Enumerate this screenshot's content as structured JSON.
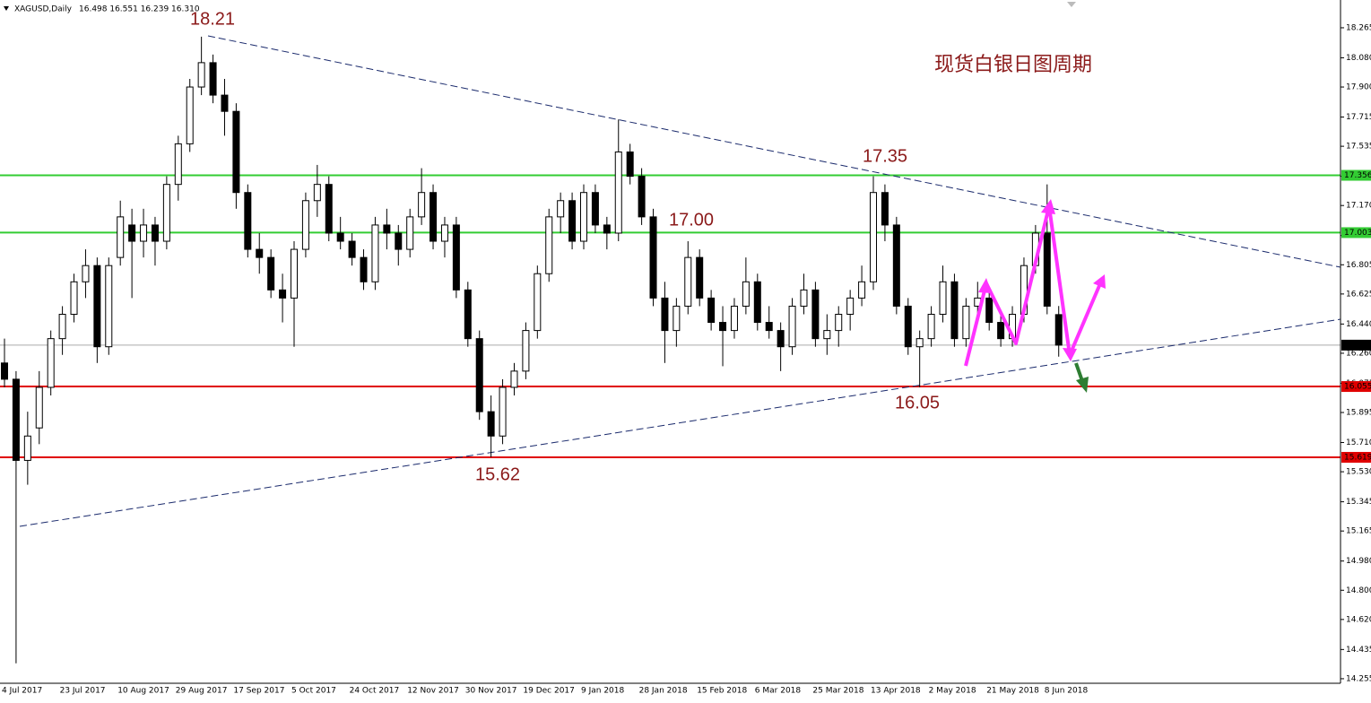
{
  "header": {
    "symbol": "XAGUSD,Daily",
    "quote": "16.498 16.551 16.239 16.310"
  },
  "chart_data": {
    "type": "candlestick",
    "title": "现货白银日图周期",
    "annotations": [
      "18.21",
      "17.35",
      "17.00",
      "16.05",
      "15.62"
    ],
    "categories": [
      "4 Jul 2017",
      null,
      null,
      null,
      null,
      "23 Jul 2017",
      null,
      null,
      null,
      null,
      "10 Aug 2017",
      null,
      null,
      null,
      null,
      "29 Aug 2017",
      null,
      null,
      null,
      null,
      "17 Sep 2017",
      null,
      null,
      null,
      null,
      "5 Oct 2017",
      null,
      null,
      null,
      null,
      "24 Oct 2017",
      null,
      null,
      null,
      null,
      "12 Nov 2017",
      null,
      null,
      null,
      null,
      "30 Nov 2017",
      null,
      null,
      null,
      null,
      "19 Dec 2017",
      null,
      null,
      null,
      null,
      "9 Jan 2018",
      null,
      null,
      null,
      null,
      "28 Jan 2018",
      null,
      null,
      null,
      null,
      "15 Feb 2018",
      null,
      null,
      null,
      null,
      "6 Mar 2018",
      null,
      null,
      null,
      null,
      "25 Mar 2018",
      null,
      null,
      null,
      null,
      "13 Apr 2018",
      null,
      null,
      null,
      null,
      "2 May 2018",
      null,
      null,
      null,
      null,
      "21 May 2018",
      null,
      null,
      null,
      null,
      "8 Jun 2018",
      null
    ],
    "open": [
      16.2,
      16.1,
      15.6,
      15.8,
      16.05,
      16.35,
      16.5,
      16.7,
      16.8,
      16.3,
      16.85,
      17.05,
      16.95,
      17.05,
      16.95,
      17.3,
      17.55,
      17.9,
      18.05,
      17.85,
      17.75,
      17.25,
      16.9,
      16.85,
      16.65,
      16.6,
      16.9,
      17.2,
      17.3,
      17,
      16.95,
      16.85,
      16.7,
      17.05,
      17,
      16.9,
      17.1,
      17.25,
      16.95,
      17.05,
      16.65,
      16.35,
      15.9,
      15.75,
      16.05,
      16.15,
      16.4,
      16.75,
      17.1,
      17.2,
      16.95,
      17.25,
      17.05,
      17,
      17.5,
      17.35,
      17.1,
      16.6,
      16.4,
      16.55,
      16.85,
      16.6,
      16.45,
      16.4,
      16.55,
      16.7,
      16.45,
      16.4,
      16.3,
      16.55,
      16.65,
      16.35,
      16.4,
      16.5,
      16.6,
      16.7,
      17.25,
      17.05,
      16.55,
      16.3,
      16.35,
      16.5,
      16.7,
      16.35,
      16.55,
      16.6,
      16.45,
      16.35,
      16.5,
      16.8,
      17,
      16.498
    ],
    "high": [
      16.35,
      16.15,
      15.9,
      16.15,
      16.4,
      16.55,
      16.75,
      16.9,
      16.85,
      16.85,
      17.2,
      17.15,
      17.15,
      17.1,
      17.35,
      17.6,
      17.95,
      18.21,
      18.1,
      17.95,
      17.8,
      17.3,
      17,
      16.9,
      16.75,
      16.95,
      17.25,
      17.42,
      17.35,
      17.1,
      17,
      16.9,
      17.1,
      17.15,
      17.05,
      17.15,
      17.4,
      17.3,
      17.1,
      17.1,
      16.7,
      16.4,
      16,
      16.1,
      16.2,
      16.45,
      16.8,
      17.15,
      17.25,
      17.25,
      17.3,
      17.3,
      17.1,
      17.7,
      17.55,
      17.4,
      17.15,
      16.7,
      16.6,
      16.95,
      16.9,
      16.65,
      16.55,
      16.6,
      16.85,
      16.75,
      16.55,
      16.45,
      16.6,
      16.75,
      16.7,
      16.5,
      16.55,
      16.65,
      16.8,
      17.35,
      17.3,
      17.1,
      16.6,
      16.4,
      16.55,
      16.8,
      16.75,
      16.6,
      16.7,
      16.65,
      16.5,
      16.55,
      16.85,
      17.05,
      17.3,
      16.551
    ],
    "low": [
      16.05,
      14.35,
      15.45,
      15.7,
      16,
      16.25,
      16.45,
      16.6,
      16.2,
      16.25,
      16.8,
      16.6,
      16.85,
      16.8,
      16.9,
      17.2,
      17.5,
      17.85,
      17.8,
      17.6,
      17.15,
      16.85,
      16.75,
      16.6,
      16.45,
      16.3,
      16.85,
      17.1,
      16.95,
      16.9,
      16.8,
      16.65,
      16.65,
      16.9,
      16.8,
      16.85,
      17.05,
      16.9,
      16.85,
      16.6,
      16.3,
      15.85,
      15.62,
      15.7,
      16,
      16.1,
      16.35,
      16.7,
      17,
      16.9,
      16.9,
      17,
      16.9,
      16.95,
      17.3,
      17.05,
      16.55,
      16.2,
      16.3,
      16.5,
      16.55,
      16.4,
      16.18,
      16.35,
      16.5,
      16.4,
      16.35,
      16.15,
      16.25,
      16.5,
      16.3,
      16.25,
      16.3,
      16.4,
      16.55,
      16.65,
      16.95,
      16.5,
      16.25,
      16.05,
      16.3,
      16.45,
      16.3,
      16.3,
      16.45,
      16.4,
      16.3,
      16.3,
      16.45,
      16.75,
      16.5,
      16.239
    ],
    "close": [
      16.1,
      15.6,
      15.75,
      16.05,
      16.35,
      16.5,
      16.7,
      16.8,
      16.3,
      16.8,
      17.1,
      16.95,
      17.05,
      16.95,
      17.3,
      17.55,
      17.9,
      18.05,
      17.85,
      17.75,
      17.25,
      16.9,
      16.85,
      16.65,
      16.6,
      16.9,
      17.2,
      17.3,
      17,
      16.95,
      16.85,
      16.7,
      17.05,
      17,
      16.9,
      17.1,
      17.25,
      16.95,
      17.05,
      16.65,
      16.35,
      15.9,
      15.75,
      16.05,
      16.15,
      16.4,
      16.75,
      17.1,
      17.2,
      16.95,
      17.25,
      17.05,
      17,
      17.5,
      17.35,
      17.1,
      16.6,
      16.4,
      16.55,
      16.85,
      16.6,
      16.45,
      16.4,
      16.55,
      16.7,
      16.45,
      16.4,
      16.3,
      16.55,
      16.65,
      16.35,
      16.4,
      16.5,
      16.6,
      16.7,
      17.25,
      17.05,
      16.55,
      16.3,
      16.35,
      16.5,
      16.7,
      16.35,
      16.55,
      16.6,
      16.45,
      16.35,
      16.5,
      16.8,
      17,
      16.55,
      16.31
    ],
    "up_color": "#ffffff",
    "down_color": "#000000",
    "levels": [
      {
        "value": 17.356,
        "label": "17.356",
        "color": "#33cc33"
      },
      {
        "value": 17.003,
        "label": "17.003",
        "color": "#33cc33"
      },
      {
        "value": 16.31,
        "label": "16.310",
        "color": "#000000"
      },
      {
        "value": 16.055,
        "label": "16.055",
        "color": "#e00000"
      },
      {
        "value": 15.619,
        "label": "15.619",
        "color": "#e00000"
      }
    ],
    "ylim": [
      14.227,
      18.436
    ],
    "yticks": [
      18.265,
      {
        "value": 18.08,
        "label": "18.080"
      },
      {
        "value": 17.9,
        "label": "17.900"
      },
      17.715,
      17.535,
      {
        "value": 17.35,
        "label": "17.350"
      },
      {
        "value": 17.17,
        "label": "17.170"
      },
      16.985,
      16.805,
      16.625,
      {
        "value": 16.44,
        "label": "16.440"
      },
      {
        "value": 16.26,
        "label": "16.260"
      },
      16.075,
      15.895,
      {
        "value": 15.71,
        "label": "15.710"
      },
      {
        "value": 15.53,
        "label": "15.530"
      },
      15.345,
      15.165,
      {
        "value": 14.98,
        "label": "14.980"
      },
      {
        "value": 14.8,
        "label": "14.800"
      },
      {
        "value": 14.62,
        "label": "14.620"
      },
      14.435,
      14.255
    ],
    "grid": false
  }
}
